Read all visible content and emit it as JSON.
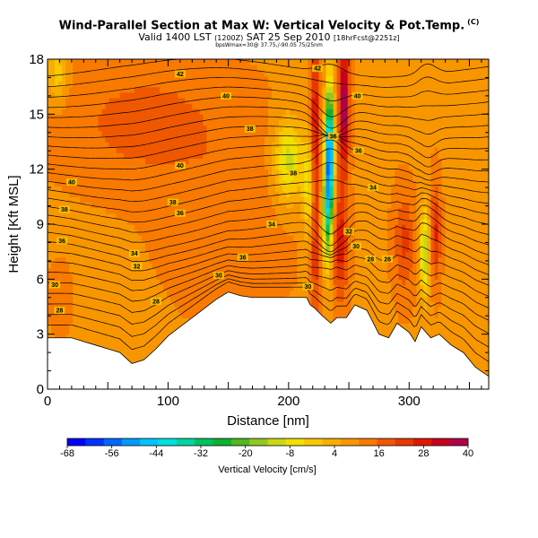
{
  "chart_data": {
    "type": "heatmap",
    "title": "Wind-Parallel Section at Max W: Vertical Velocity & Pot.Temp.",
    "title_mark": "(C)",
    "subtitle": {
      "main": "Valid 1400 LST",
      "utc": "(1200Z)",
      "date": "SAT 25 Sep 2010",
      "run": "[18hrFcst@2251z]"
    },
    "subtitle2": "bpsWmax=30@ 37.75,/-90.05 75/25nm",
    "xlabel": "Distance [nm]",
    "ylabel": "Height [Kft MSL]",
    "xlim": [
      0,
      366
    ],
    "ylim": [
      0,
      18
    ],
    "x_ticks": [
      "0",
      "100",
      "200",
      "300"
    ],
    "x_tick_values": [
      0,
      100,
      200,
      300
    ],
    "y_ticks": [
      "0",
      "3",
      "6",
      "9",
      "12",
      "15",
      "18"
    ],
    "y_tick_values": [
      0,
      3,
      6,
      9,
      12,
      15,
      18
    ],
    "terrain": {
      "x": [
        0,
        10,
        20,
        30,
        40,
        50,
        60,
        70,
        80,
        90,
        100,
        110,
        120,
        130,
        140,
        150,
        160,
        170,
        180,
        190,
        200,
        210,
        215,
        218,
        222,
        228,
        235,
        240,
        248,
        255,
        265,
        275,
        283,
        290,
        300,
        305,
        310,
        318,
        325,
        335,
        345,
        355,
        366
      ],
      "height_kft": [
        2.8,
        2.8,
        2.8,
        2.6,
        2.4,
        2.2,
        2.0,
        1.4,
        1.6,
        2.2,
        2.9,
        3.4,
        3.9,
        4.4,
        4.9,
        5.3,
        5.1,
        5.0,
        5.0,
        5.0,
        5.0,
        5.0,
        5.0,
        4.6,
        4.4,
        4.0,
        3.6,
        3.9,
        3.9,
        4.6,
        4.3,
        3.0,
        2.8,
        3.6,
        3.1,
        2.6,
        3.4,
        2.8,
        3.0,
        2.4,
        2.0,
        1.2,
        0.7
      ]
    },
    "vertical_velocity": {
      "unit": "cm/s",
      "background": 10,
      "features": [
        {
          "x": 80,
          "z": 14.5,
          "w": 8,
          "sx": 60,
          "sz": 3
        },
        {
          "x": 150,
          "z": 10,
          "w": 4,
          "sx": 50,
          "sz": 5
        },
        {
          "x": 200,
          "z": 12.5,
          "w": -22,
          "sx": 12,
          "sz": 2.2
        },
        {
          "x": 218,
          "z": 11,
          "w": -20,
          "sx": 6,
          "sz": 3
        },
        {
          "x": 222,
          "z": 12,
          "w": 26,
          "sx": 4,
          "sz": 7
        },
        {
          "x": 234,
          "z": 13,
          "w": -64,
          "sx": 3.5,
          "sz": 3.5
        },
        {
          "x": 232,
          "z": 9.5,
          "w": -30,
          "sx": 4,
          "sz": 3
        },
        {
          "x": 246,
          "z": 15.5,
          "w": 32,
          "sx": 4,
          "sz": 3.5
        },
        {
          "x": 243,
          "z": 8,
          "w": 18,
          "sx": 6,
          "sz": 3
        },
        {
          "x": 296,
          "z": 8,
          "w": 12,
          "sx": 8,
          "sz": 2.5
        },
        {
          "x": 313,
          "z": 7.5,
          "w": -24,
          "sx": 4,
          "sz": 2.5
        },
        {
          "x": 322,
          "z": 8.5,
          "w": 16,
          "sx": 4,
          "sz": 2.5
        },
        {
          "x": 8,
          "z": 17.2,
          "w": -12,
          "sx": 8,
          "sz": 1.5
        },
        {
          "x": 10,
          "z": 5,
          "w": 2,
          "sx": 10,
          "sz": 2
        }
      ]
    },
    "potential_temperature": {
      "unit": "C",
      "contour_labels": [
        {
          "text": "42",
          "x": 110,
          "z": 17.2
        },
        {
          "text": "40",
          "x": 148,
          "z": 16.0
        },
        {
          "text": "38",
          "x": 168,
          "z": 14.2
        },
        {
          "text": "40",
          "x": 110,
          "z": 12.2
        },
        {
          "text": "40",
          "x": 20,
          "z": 11.3
        },
        {
          "text": "38",
          "x": 104,
          "z": 10.2
        },
        {
          "text": "38",
          "x": 14,
          "z": 9.8
        },
        {
          "text": "36",
          "x": 110,
          "z": 9.6
        },
        {
          "text": "36",
          "x": 12,
          "z": 8.1
        },
        {
          "text": "34",
          "x": 186,
          "z": 9.0
        },
        {
          "text": "34",
          "x": 72,
          "z": 7.4
        },
        {
          "text": "36",
          "x": 162,
          "z": 7.2
        },
        {
          "text": "32",
          "x": 74,
          "z": 6.7
        },
        {
          "text": "30",
          "x": 142,
          "z": 6.2
        },
        {
          "text": "30",
          "x": 6,
          "z": 5.7
        },
        {
          "text": "28",
          "x": 90,
          "z": 4.8
        },
        {
          "text": "28",
          "x": 10,
          "z": 4.3
        },
        {
          "text": "42",
          "x": 224,
          "z": 17.5
        },
        {
          "text": "40",
          "x": 257,
          "z": 16.0
        },
        {
          "text": "36",
          "x": 237,
          "z": 13.8
        },
        {
          "text": "36",
          "x": 258,
          "z": 13.0
        },
        {
          "text": "38",
          "x": 204,
          "z": 11.8
        },
        {
          "text": "34",
          "x": 270,
          "z": 11.0
        },
        {
          "text": "32",
          "x": 250,
          "z": 8.6
        },
        {
          "text": "30",
          "x": 256,
          "z": 7.8
        },
        {
          "text": "28",
          "x": 268,
          "z": 7.1
        },
        {
          "text": "26",
          "x": 282,
          "z": 7.1
        },
        {
          "text": "30",
          "x": 216,
          "z": 5.6
        }
      ]
    },
    "colorbar": {
      "label": "Vertical Velocity [cm/s]",
      "ticks": [
        "-68",
        "-56",
        "-44",
        "-32",
        "-20",
        "-8",
        "4",
        "16",
        "28",
        "40"
      ],
      "tick_values": [
        -68,
        -56,
        -44,
        -32,
        -20,
        -8,
        4,
        16,
        28,
        40
      ],
      "colors": [
        "#0000ff",
        "#0033ff",
        "#0066ff",
        "#0099ff",
        "#00c4ff",
        "#00e0e0",
        "#00d4a0",
        "#00c060",
        "#10b030",
        "#50b820",
        "#90c820",
        "#c8d818",
        "#f0e000",
        "#f8c800",
        "#f8ae00",
        "#f89600",
        "#f87a00",
        "#f05800",
        "#e83800",
        "#e01800",
        "#c80020",
        "#b0004a"
      ]
    }
  }
}
